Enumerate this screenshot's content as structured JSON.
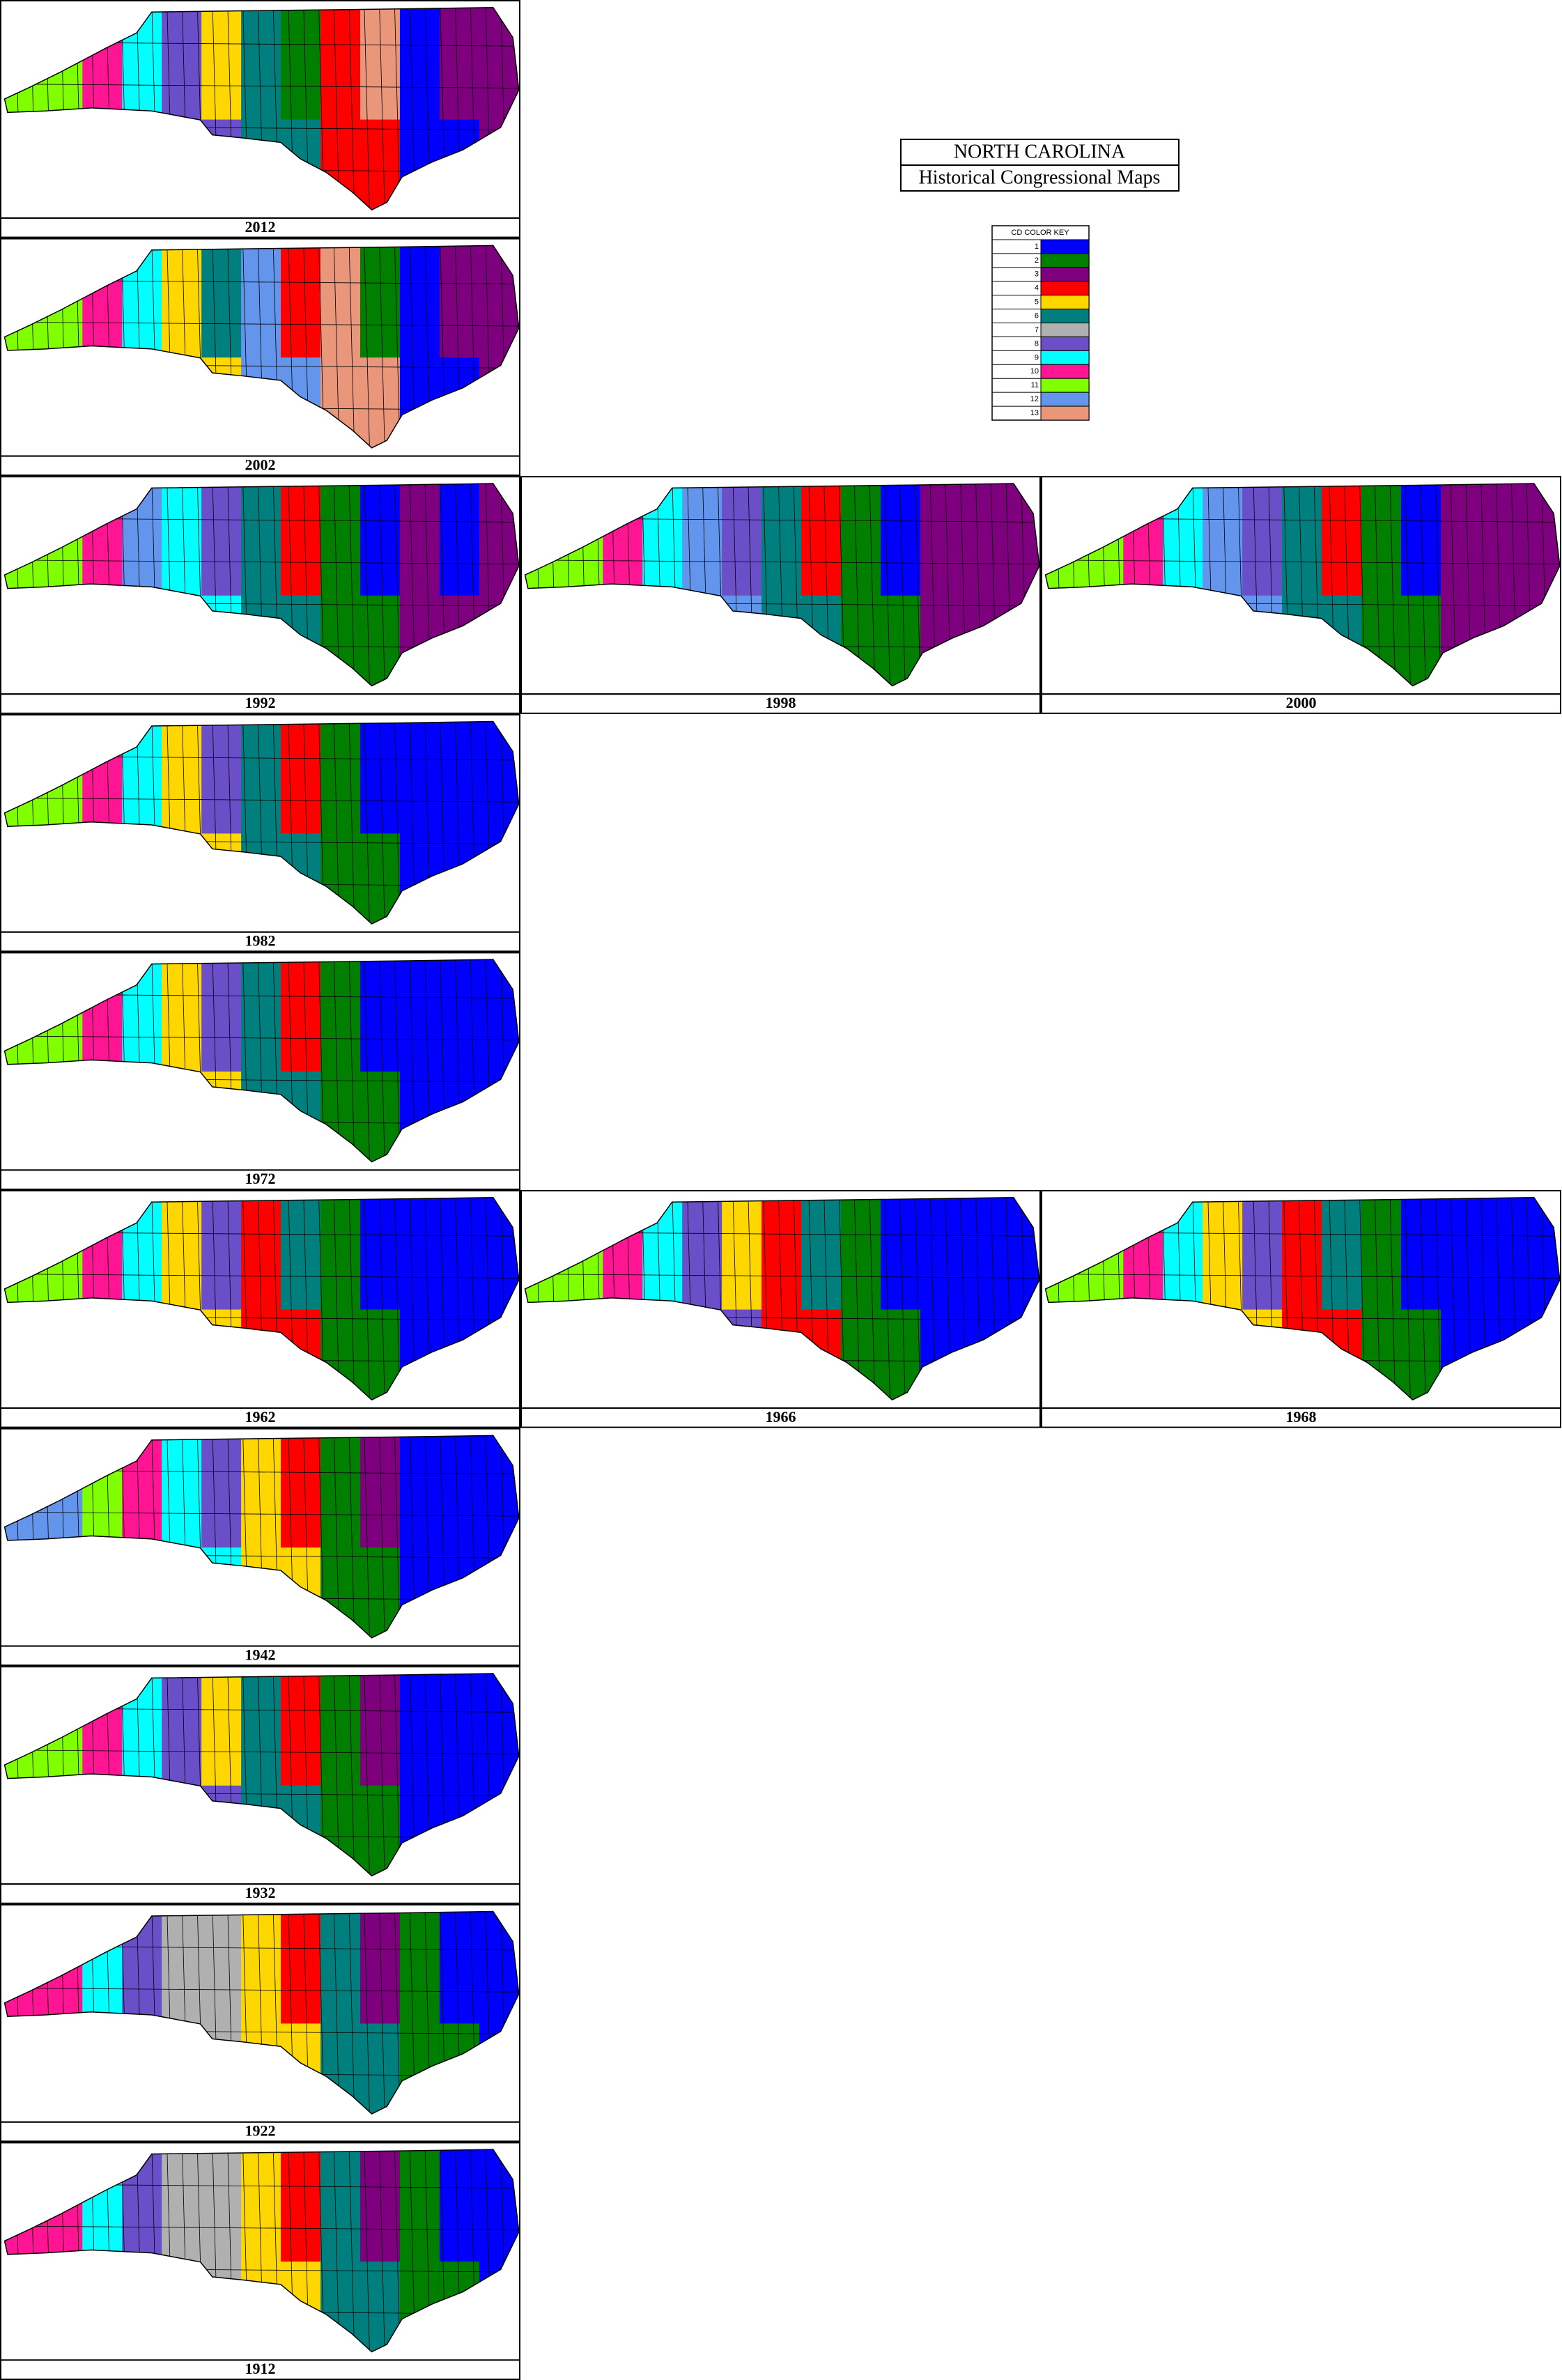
{
  "title": "NORTH CAROLINA",
  "subtitle": "Historical Congressional Maps",
  "key": {
    "title": "CD COLOR KEY",
    "entries": [
      {
        "label": 1,
        "color": "#0000ff"
      },
      {
        "label": 2,
        "color": "#007f00"
      },
      {
        "label": 3,
        "color": "#7f007f"
      },
      {
        "label": 4,
        "color": "#ff0000"
      },
      {
        "label": 5,
        "color": "#ffd700"
      },
      {
        "label": 6,
        "color": "#007f7f"
      },
      {
        "label": 7,
        "color": "#b0b0b0"
      },
      {
        "label": 8,
        "color": "#6a4fc8"
      },
      {
        "label": 9,
        "color": "#00ffff"
      },
      {
        "label": 10,
        "color": "#ff1493"
      },
      {
        "label": 11,
        "color": "#7fff00"
      },
      {
        "label": 12,
        "color": "#6495ed"
      },
      {
        "label": 13,
        "color": "#e9967a"
      }
    ]
  },
  "panels": [
    {
      "year": "2012"
    },
    {
      "year": "2002"
    },
    {
      "year": "1992"
    },
    {
      "year": "1998"
    },
    {
      "year": "2000"
    },
    {
      "year": "1982"
    },
    {
      "year": "1972"
    },
    {
      "year": "1962"
    },
    {
      "year": "1966"
    },
    {
      "year": "1968"
    },
    {
      "year": "1942"
    },
    {
      "year": "1932"
    },
    {
      "year": "1922"
    },
    {
      "year": "1912"
    }
  ]
}
